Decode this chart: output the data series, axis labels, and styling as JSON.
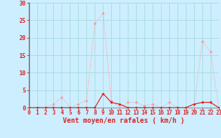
{
  "title": "",
  "xlabel": "Vent moyen/en rafales ( km/h )",
  "ylabel": "",
  "bg_color": "#cceeff",
  "grid_color": "#aadddd",
  "line1_color": "#ff9999",
  "line2_color": "#dd2222",
  "x": [
    0,
    1,
    2,
    3,
    4,
    5,
    6,
    7,
    8,
    9,
    10,
    11,
    12,
    13,
    14,
    15,
    16,
    17,
    18,
    19,
    20,
    21,
    22,
    23
  ],
  "y_rafales": [
    0,
    0,
    0,
    1,
    3,
    0,
    1,
    2,
    24,
    27,
    2,
    0,
    1.5,
    1.5,
    0.5,
    1,
    0,
    1.5,
    0,
    0,
    0,
    19,
    16,
    0
  ],
  "y_moyen": [
    0,
    0,
    0,
    0,
    0,
    0,
    0,
    0,
    0,
    4,
    1.5,
    1,
    0,
    0,
    0,
    0,
    0,
    0,
    0,
    0,
    1,
    1.5,
    1.5,
    0
  ],
  "xlim": [
    0,
    23
  ],
  "ylim": [
    0,
    30
  ],
  "yticks": [
    0,
    5,
    10,
    15,
    20,
    25,
    30
  ],
  "xticks": [
    0,
    1,
    2,
    3,
    4,
    5,
    6,
    7,
    8,
    9,
    10,
    11,
    12,
    13,
    14,
    15,
    16,
    17,
    18,
    19,
    20,
    21,
    22,
    23
  ],
  "xlabel_color": "#dd2222",
  "tick_color": "#dd2222",
  "xlabel_fontsize": 7,
  "tick_fontsize_x": 5.5,
  "tick_fontsize_y": 6
}
